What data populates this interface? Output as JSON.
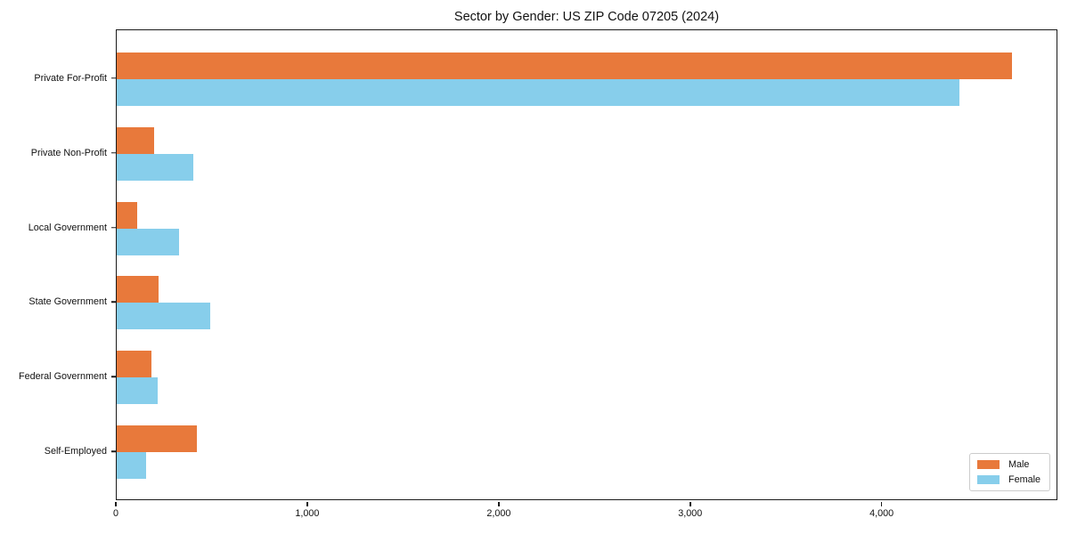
{
  "chart_data": {
    "type": "bar",
    "orientation": "horizontal",
    "title": "Sector by Gender: US ZIP Code 07205 (2024)",
    "categories": [
      "Private For-Profit",
      "Private Non-Profit",
      "Local Government",
      "State Government",
      "Federal Government",
      "Self-Employed"
    ],
    "series": [
      {
        "name": "Male",
        "color": "#e8793b",
        "values": [
          4675,
          195,
          105,
          220,
          180,
          420
        ]
      },
      {
        "name": "Female",
        "color": "#87ceeb",
        "values": [
          4400,
          400,
          325,
          490,
          215,
          155
        ]
      }
    ],
    "xlabel": "",
    "ylabel": "",
    "xlim": [
      0,
      4918
    ],
    "xticks": {
      "values": [
        0,
        1000,
        2000,
        3000,
        4000
      ],
      "labels": [
        "0",
        "1,000",
        "2,000",
        "3,000",
        "4,000"
      ]
    },
    "grid": false,
    "legend": {
      "position": "lower right",
      "entries": [
        "Male",
        "Female"
      ]
    },
    "colors": {
      "male": "#e8793b",
      "female": "#87ceeb",
      "spine": "#1a1a1a",
      "text": "#111111",
      "legend_border": "#cccccc",
      "background": "#ffffff"
    }
  }
}
